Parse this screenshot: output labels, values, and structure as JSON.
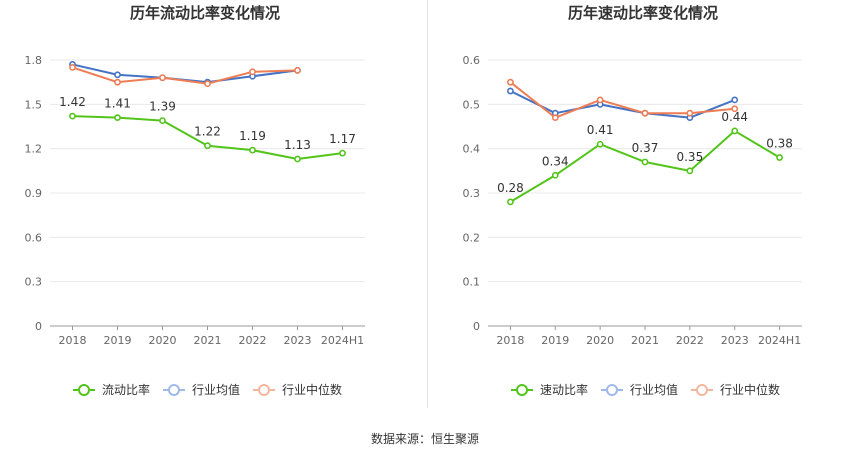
{
  "colors": {
    "main": "#52c41a",
    "avg": "#4472c4",
    "median": "#ed7d55",
    "avg_legend": "#9fb9ea",
    "median_legend": "#f3b79e",
    "grid": "#e8e8e8",
    "axis_text": "#666666",
    "title": "#333333"
  },
  "source_text": "数据来源：恒生聚源",
  "chart_data": [
    {
      "type": "line",
      "title": "历年流动比率变化情况",
      "categories": [
        "2018",
        "2019",
        "2020",
        "2021",
        "2022",
        "2023",
        "2024H1"
      ],
      "ylim": [
        0,
        1.8
      ],
      "yticks": [
        "0",
        "0.3",
        "0.6",
        "0.9",
        "1.2",
        "1.5",
        "1.8"
      ],
      "series": [
        {
          "name": "流动比率",
          "role": "main",
          "values": [
            1.42,
            1.41,
            1.39,
            1.22,
            1.19,
            1.13,
            1.17
          ],
          "labels": [
            "1.42",
            "1.41",
            "1.39",
            "1.22",
            "1.19",
            "1.13",
            "1.17"
          ]
        },
        {
          "name": "行业均值",
          "role": "avg",
          "values": [
            1.77,
            1.7,
            1.68,
            1.65,
            1.69,
            1.73,
            null
          ]
        },
        {
          "name": "行业中位数",
          "role": "median",
          "values": [
            1.75,
            1.65,
            1.68,
            1.64,
            1.72,
            1.73,
            null
          ]
        }
      ]
    },
    {
      "type": "line",
      "title": "历年速动比率变化情况",
      "categories": [
        "2018",
        "2019",
        "2020",
        "2021",
        "2022",
        "2023",
        "2024H1"
      ],
      "ylim": [
        0,
        0.6
      ],
      "yticks": [
        "0",
        "0.1",
        "0.2",
        "0.3",
        "0.4",
        "0.5",
        "0.6"
      ],
      "series": [
        {
          "name": "速动比率",
          "role": "main",
          "values": [
            0.28,
            0.34,
            0.41,
            0.37,
            0.35,
            0.44,
            0.38
          ],
          "labels": [
            "0.28",
            "0.34",
            "0.41",
            "0.37",
            "0.35",
            "0.44",
            "0.38"
          ]
        },
        {
          "name": "行业均值",
          "role": "avg",
          "values": [
            0.53,
            0.48,
            0.5,
            0.48,
            0.47,
            0.51,
            null
          ]
        },
        {
          "name": "行业中位数",
          "role": "median",
          "values": [
            0.55,
            0.47,
            0.51,
            0.48,
            0.48,
            0.49,
            null
          ]
        }
      ]
    }
  ]
}
